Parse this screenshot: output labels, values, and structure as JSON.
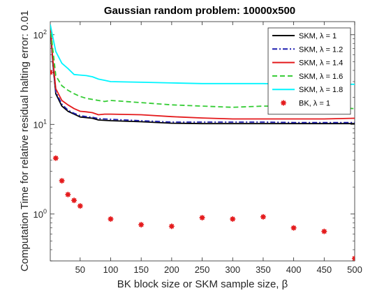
{
  "chart_data": {
    "type": "line",
    "title": "Gaussian random problem: 10000x500",
    "xlabel": "BK block size or SKM sample size, β",
    "ylabel": "Computation Time for relative residual halting error: 0.01",
    "xlim": [
      1,
      500
    ],
    "ylim": [
      0.3,
      140
    ],
    "yscale": "log",
    "grid": false,
    "legend_position": "top-right",
    "xticks": [
      {
        "value": 50,
        "label": "50"
      },
      {
        "value": 100,
        "label": "100"
      },
      {
        "value": 150,
        "label": "150"
      },
      {
        "value": 200,
        "label": "200"
      },
      {
        "value": 250,
        "label": "250"
      },
      {
        "value": 300,
        "label": "300"
      },
      {
        "value": 350,
        "label": "350"
      },
      {
        "value": 400,
        "label": "400"
      },
      {
        "value": 450,
        "label": "450"
      },
      {
        "value": 500,
        "label": "500"
      }
    ],
    "yticks": [
      {
        "value": 1,
        "base": "10",
        "exp": "0"
      },
      {
        "value": 10,
        "base": "10",
        "exp": "1"
      },
      {
        "value": 100,
        "base": "10",
        "exp": "2"
      }
    ],
    "series": [
      {
        "name": "SKM, λ = 1",
        "color": "#000000",
        "dash": "solid",
        "marker": "none",
        "x": [
          1,
          5,
          10,
          20,
          30,
          40,
          50,
          60,
          70,
          80,
          90,
          100,
          150,
          200,
          250,
          300,
          350,
          400,
          450,
          500
        ],
        "y": [
          128,
          50,
          22,
          16,
          14,
          13,
          12.1,
          11.9,
          11.7,
          11.2,
          11.1,
          11.0,
          10.7,
          10.3,
          10.2,
          10.2,
          10.2,
          10.2,
          10.2,
          10.2
        ]
      },
      {
        "name": "SKM, λ = 1.2",
        "color": "#1f1fb0",
        "dash": "dashdot",
        "marker": "none",
        "x": [
          1,
          5,
          10,
          20,
          30,
          40,
          50,
          60,
          70,
          80,
          90,
          100,
          150,
          200,
          250,
          300,
          350,
          400,
          450,
          500
        ],
        "y": [
          128,
          52,
          23,
          16.8,
          14.4,
          13.3,
          12.5,
          12.2,
          12.0,
          11.6,
          11.5,
          11.4,
          11.0,
          10.6,
          10.6,
          10.6,
          10.6,
          10.5,
          10.5,
          10.5
        ]
      },
      {
        "name": "SKM, λ = 1.4",
        "color": "#e41a1c",
        "dash": "solid",
        "marker": "none",
        "x": [
          1,
          5,
          10,
          20,
          30,
          40,
          50,
          60,
          70,
          80,
          90,
          100,
          150,
          200,
          250,
          300,
          350,
          400,
          450,
          500
        ],
        "y": [
          128,
          55,
          25,
          18.5,
          16.5,
          15,
          14.0,
          13.8,
          13.5,
          12.8,
          13.0,
          13.0,
          12.8,
          12.2,
          11.8,
          11.5,
          11.5,
          11.5,
          11.5,
          11.7
        ]
      },
      {
        "name": "SKM, λ = 1.6",
        "color": "#33cc33",
        "dash": "dashed",
        "marker": "none",
        "x": [
          1,
          5,
          10,
          20,
          30,
          40,
          50,
          60,
          70,
          80,
          90,
          100,
          150,
          200,
          250,
          300,
          350,
          400,
          450,
          500
        ],
        "y": [
          128,
          70,
          35,
          27,
          24,
          22,
          20.5,
          19.5,
          19.0,
          18.5,
          18.0,
          18.5,
          17.5,
          16.5,
          16,
          15.5,
          16,
          16,
          15.5,
          15
        ]
      },
      {
        "name": "SKM, λ = 1.8",
        "color": "#00f5ff",
        "dash": "solid",
        "marker": "none",
        "x": [
          1,
          5,
          10,
          20,
          30,
          40,
          50,
          60,
          70,
          80,
          90,
          100,
          150,
          200,
          250,
          300,
          350,
          400,
          450,
          500
        ],
        "y": [
          130,
          95,
          65,
          48,
          42,
          36,
          35.5,
          35,
          34,
          32,
          31,
          30,
          29.5,
          29,
          28.5,
          28.5,
          28.5,
          28,
          28,
          28
        ]
      },
      {
        "name": "BK, λ = 1",
        "color": "#e41a1c",
        "dash": "none",
        "marker": "asterisk",
        "x": [
          1,
          10,
          20,
          30,
          40,
          50,
          100,
          150,
          200,
          250,
          300,
          350,
          400,
          450,
          500
        ],
        "y": [
          38,
          4.2,
          2.35,
          1.65,
          1.42,
          1.23,
          0.88,
          0.76,
          0.73,
          0.91,
          0.88,
          0.93,
          0.7,
          0.64,
          0.32
        ]
      }
    ]
  }
}
